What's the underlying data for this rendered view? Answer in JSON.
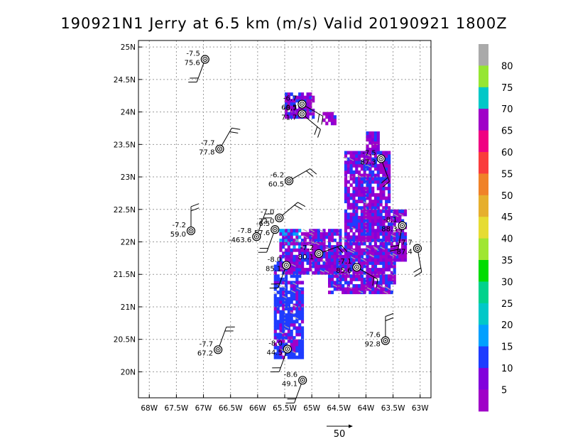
{
  "chart_data": {
    "type": "scatter",
    "title": "190921N1 Jerry at 6.5 km (m/s) Valid 20190921  1800Z",
    "xlabel": "",
    "ylabel": "",
    "xlim": [
      -68.2,
      -62.8
    ],
    "ylim": [
      19.6,
      25.1
    ],
    "grid": true,
    "x_ticks": [
      "68W",
      "67.5W",
      "67W",
      "66.5W",
      "66W",
      "65.5W",
      "65W",
      "64.5W",
      "64W",
      "63.5W",
      "63W"
    ],
    "x_tick_values": [
      -68,
      -67.5,
      -67,
      -66.5,
      -66,
      -65.5,
      -65,
      -64.5,
      -64,
      -63.5,
      -63
    ],
    "y_ticks": [
      "20N",
      "20.5N",
      "21N",
      "21.5N",
      "22N",
      "22.5N",
      "23N",
      "23.5N",
      "24N",
      "24.5N",
      "25N"
    ],
    "y_tick_values": [
      20,
      20.5,
      21,
      21.5,
      22,
      22.5,
      23,
      23.5,
      24,
      24.5,
      25
    ],
    "colorbar": {
      "labels": [
        "5",
        "10",
        "15",
        "20",
        "25",
        "30",
        "35",
        "40",
        "45",
        "50",
        "55",
        "60",
        "65",
        "70",
        "75",
        "80"
      ],
      "colors": [
        "#a000c8",
        "#8200dc",
        "#1e3cff",
        "#00a0ff",
        "#00c8c8",
        "#00d28c",
        "#00dc00",
        "#a0e632",
        "#e6dc32",
        "#e6af2d",
        "#f08228",
        "#fa3c3c",
        "#f00082",
        "#a000c8",
        "#00c8c8",
        "#96e632",
        "#aaaaaa"
      ]
    },
    "reference_vector_label": "50",
    "stations": [
      {
        "lon": -66.97,
        "lat": 24.81,
        "label1": "-7.5",
        "label2": "75.6"
      },
      {
        "lon": -65.18,
        "lat": 24.12,
        "label1": "-6.7",
        "label2": "60.5"
      },
      {
        "lon": -65.18,
        "lat": 23.97,
        "label1": "-6.7",
        "label2": "71.7"
      },
      {
        "lon": -66.7,
        "lat": 23.43,
        "label1": "-7.7",
        "label2": "77.8"
      },
      {
        "lon": -63.72,
        "lat": 23.28,
        "label1": "-7.5",
        "label2": "87.3"
      },
      {
        "lon": -65.42,
        "lat": 22.94,
        "label1": "-6.2",
        "label2": "60.5"
      },
      {
        "lon": -65.6,
        "lat": 22.37,
        "label1": "-7.0",
        "label2": "72.0"
      },
      {
        "lon": -65.68,
        "lat": 22.19,
        "label1": "-6.5",
        "label2": "57.6"
      },
      {
        "lon": -67.23,
        "lat": 22.17,
        "label1": "-7.2",
        "label2": "59.0"
      },
      {
        "lon": -66.02,
        "lat": 22.08,
        "label1": "-7.8",
        "label2": "-463.6"
      },
      {
        "lon": -63.33,
        "lat": 22.25,
        "label1": "-8.1",
        "label2": "88.3"
      },
      {
        "lon": -63.05,
        "lat": 21.9,
        "label1": "-7.7",
        "label2": "87.4"
      },
      {
        "lon": -64.87,
        "lat": 21.82,
        "label1": "-7.2",
        "label2": "80.1"
      },
      {
        "lon": -65.47,
        "lat": 21.64,
        "label1": "-8.0",
        "label2": "85.1"
      },
      {
        "lon": -64.17,
        "lat": 21.61,
        "label1": "-7.1",
        "label2": "85.6"
      },
      {
        "lon": -63.64,
        "lat": 20.48,
        "label1": "-7.6",
        "label2": "92.8"
      },
      {
        "lon": -66.73,
        "lat": 20.34,
        "label1": "-7.7",
        "label2": "67.2"
      },
      {
        "lon": -65.45,
        "lat": 20.35,
        "label1": "-8.0",
        "label2": "44.5"
      },
      {
        "lon": -65.17,
        "lat": 19.87,
        "label1": "-8.6",
        "label2": "49.1"
      }
    ]
  }
}
